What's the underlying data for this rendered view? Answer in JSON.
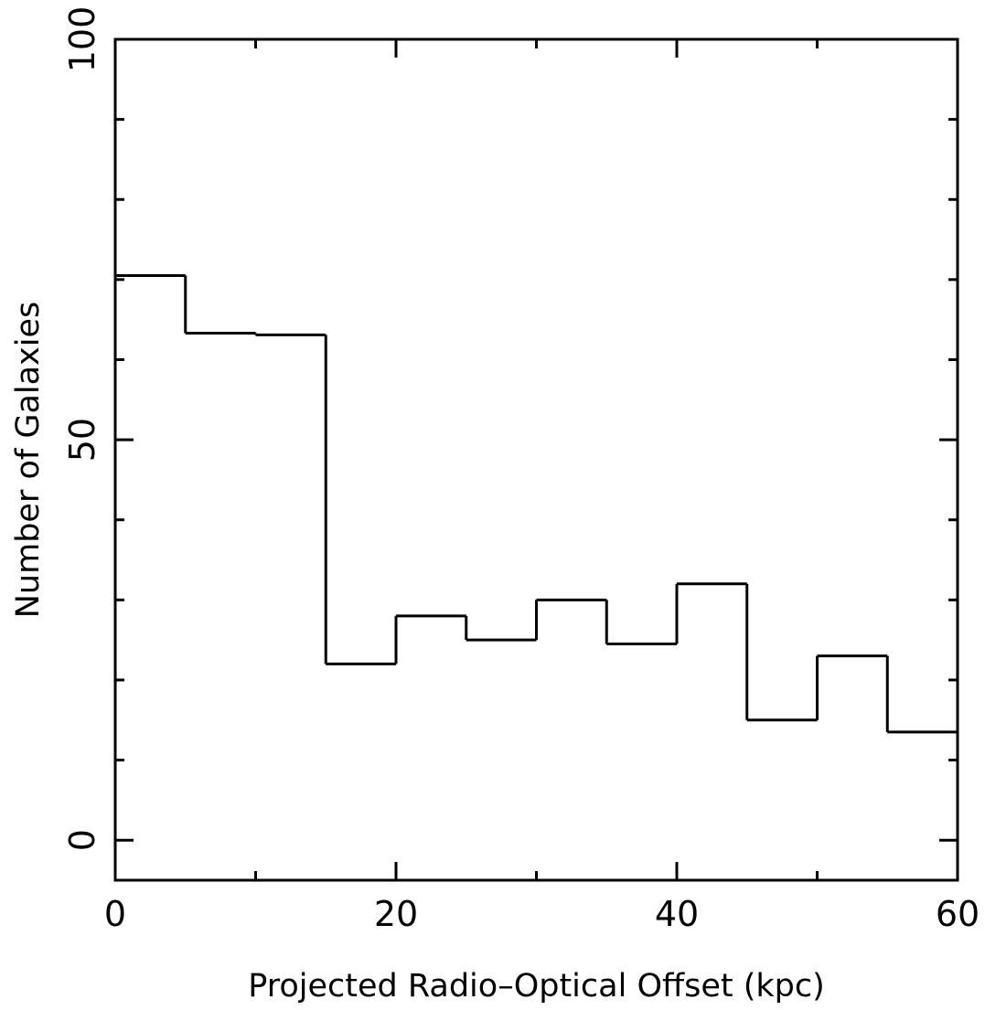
{
  "chart_data": {
    "type": "bar",
    "style": "step-histogram",
    "xlabel": "Projected Radio–Optical Offset (kpc)",
    "ylabel": "Number of Galaxies",
    "xlim": [
      0,
      60
    ],
    "ylim": [
      -5,
      100
    ],
    "x_ticks": [
      0,
      20,
      40,
      60
    ],
    "y_ticks": [
      0,
      50,
      100
    ],
    "x_minor_step": 10,
    "y_minor_step": 10,
    "grid": false,
    "bin_edges": [
      0,
      5,
      10,
      15,
      20,
      25,
      30,
      35,
      40,
      45,
      50,
      55,
      60
    ],
    "values": [
      70.5,
      63.3,
      63.1,
      22,
      28,
      25,
      30,
      24.5,
      32,
      15,
      23,
      13.5
    ],
    "color": "#000000"
  }
}
